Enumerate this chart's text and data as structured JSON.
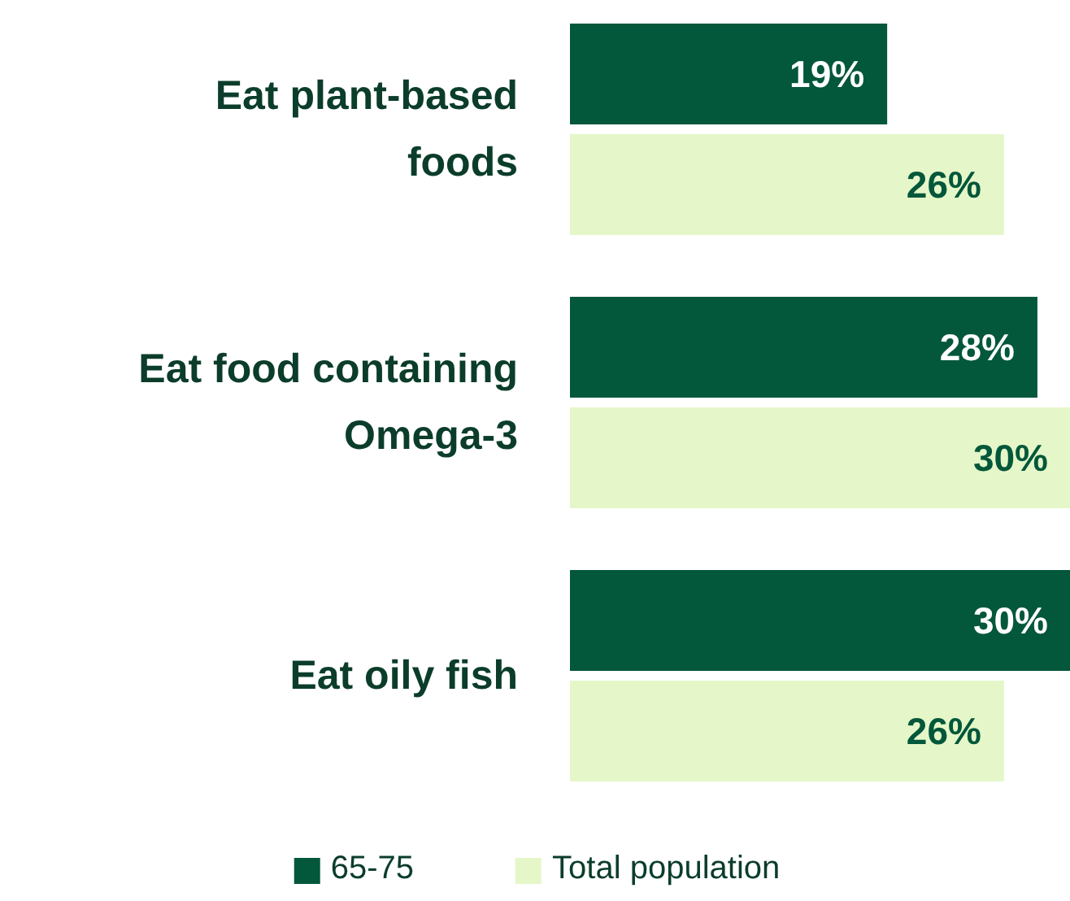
{
  "chart_data": {
    "type": "bar",
    "orientation": "horizontal",
    "categories": [
      "Eat plant-based foods",
      "Eat food containing Omega-3",
      "Eat oily fish"
    ],
    "series": [
      {
        "name": "65-75",
        "color": "#03573a",
        "values": [
          19,
          28,
          30
        ],
        "value_labels": [
          "19%",
          "28%",
          "30%"
        ]
      },
      {
        "name": "Total population",
        "color": "#e5f7c9",
        "values": [
          26,
          30,
          26
        ],
        "value_labels": [
          "26%",
          "30%",
          "26%"
        ]
      }
    ],
    "legend": "bottom"
  }
}
